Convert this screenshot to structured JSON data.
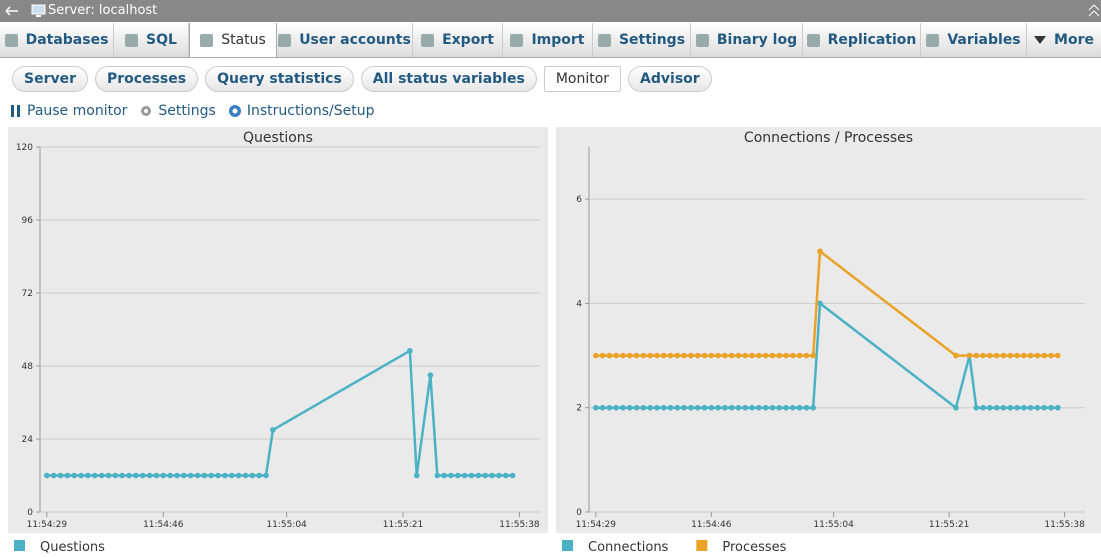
{
  "header": {
    "title": "Server: localhost"
  },
  "tabs": [
    "Databases",
    "SQL",
    "Status",
    "User accounts",
    "Export",
    "Import",
    "Settings",
    "Binary log",
    "Replication",
    "Variables",
    "More"
  ],
  "subtabs": [
    "Server",
    "Processes",
    "Query statistics",
    "All status variables",
    "Monitor",
    "Advisor"
  ],
  "toolbar": [
    "Pause monitor",
    "Settings",
    "Instructions/Setup"
  ],
  "chart_data": [
    {
      "type": "line",
      "title": "Questions",
      "x": [
        "11:54:29",
        "11:54:30",
        "11:54:31",
        "11:54:32",
        "11:54:33",
        "11:54:34",
        "11:54:35",
        "11:54:36",
        "11:54:37",
        "11:54:38",
        "11:54:39",
        "11:54:40",
        "11:54:41",
        "11:54:42",
        "11:54:43",
        "11:54:44",
        "11:54:45",
        "11:54:46",
        "11:54:47",
        "11:54:48",
        "11:54:49",
        "11:54:50",
        "11:54:51",
        "11:54:52",
        "11:54:53",
        "11:54:54",
        "11:54:55",
        "11:54:56",
        "11:54:57",
        "11:54:58",
        "11:54:59",
        "11:55:00",
        "11:55:01",
        "11:55:02",
        "11:55:22",
        "11:55:23",
        "11:55:25",
        "11:55:26",
        "11:55:27",
        "11:55:28",
        "11:55:29",
        "11:55:30",
        "11:55:31",
        "11:55:32",
        "11:55:33",
        "11:55:34",
        "11:55:35",
        "11:55:36",
        "11:55:37"
      ],
      "series": [
        {
          "name": "Questions",
          "color": "#4bb2c5",
          "values": [
            12,
            12,
            12,
            12,
            12,
            12,
            12,
            12,
            12,
            12,
            12,
            12,
            12,
            12,
            12,
            12,
            12,
            12,
            12,
            12,
            12,
            12,
            12,
            12,
            12,
            12,
            12,
            12,
            12,
            12,
            12,
            12,
            12,
            27,
            53,
            12,
            45,
            12,
            12,
            12,
            12,
            12,
            12,
            12,
            12,
            12,
            12,
            12,
            12
          ]
        }
      ],
      "xlim": [
        "11:54:28",
        "11:55:41"
      ],
      "xticks": [
        "11:54:29",
        "11:54:46",
        "11:55:04",
        "11:55:21",
        "11:55:38"
      ],
      "ylim": [
        0,
        120
      ],
      "yticks": [
        0,
        24,
        48,
        72,
        96,
        120
      ],
      "grid": true
    },
    {
      "type": "line",
      "title": "Connections / Processes",
      "x": [
        "11:54:29",
        "11:54:30",
        "11:54:31",
        "11:54:32",
        "11:54:33",
        "11:54:34",
        "11:54:35",
        "11:54:36",
        "11:54:37",
        "11:54:38",
        "11:54:39",
        "11:54:40",
        "11:54:41",
        "11:54:42",
        "11:54:43",
        "11:54:44",
        "11:54:45",
        "11:54:46",
        "11:54:47",
        "11:54:48",
        "11:54:49",
        "11:54:50",
        "11:54:51",
        "11:54:52",
        "11:54:53",
        "11:54:54",
        "11:54:55",
        "11:54:56",
        "11:54:57",
        "11:54:58",
        "11:54:59",
        "11:55:00",
        "11:55:01",
        "11:55:02",
        "11:55:22",
        "11:55:24",
        "11:55:25",
        "11:55:26",
        "11:55:27",
        "11:55:28",
        "11:55:29",
        "11:55:30",
        "11:55:31",
        "11:55:32",
        "11:55:33",
        "11:55:34",
        "11:55:35",
        "11:55:36",
        "11:55:37"
      ],
      "series": [
        {
          "name": "Connections",
          "color": "#4bb2c5",
          "values": [
            2,
            2,
            2,
            2,
            2,
            2,
            2,
            2,
            2,
            2,
            2,
            2,
            2,
            2,
            2,
            2,
            2,
            2,
            2,
            2,
            2,
            2,
            2,
            2,
            2,
            2,
            2,
            2,
            2,
            2,
            2,
            2,
            2,
            4,
            2,
            3,
            2,
            2,
            2,
            2,
            2,
            2,
            2,
            2,
            2,
            2,
            2,
            2,
            2
          ]
        },
        {
          "name": "Processes",
          "color": "#eaa228",
          "values": [
            3,
            3,
            3,
            3,
            3,
            3,
            3,
            3,
            3,
            3,
            3,
            3,
            3,
            3,
            3,
            3,
            3,
            3,
            3,
            3,
            3,
            3,
            3,
            3,
            3,
            3,
            3,
            3,
            3,
            3,
            3,
            3,
            3,
            5,
            3,
            3,
            3,
            3,
            3,
            3,
            3,
            3,
            3,
            3,
            3,
            3,
            3,
            3,
            3
          ]
        }
      ],
      "xlim": [
        "11:54:28",
        "11:55:41"
      ],
      "xticks": [
        "11:54:29",
        "11:54:46",
        "11:55:04",
        "11:55:21",
        "11:55:38"
      ],
      "ylim": [
        0,
        7
      ],
      "yticks": [
        0,
        2,
        4,
        6
      ],
      "grid": true
    }
  ]
}
